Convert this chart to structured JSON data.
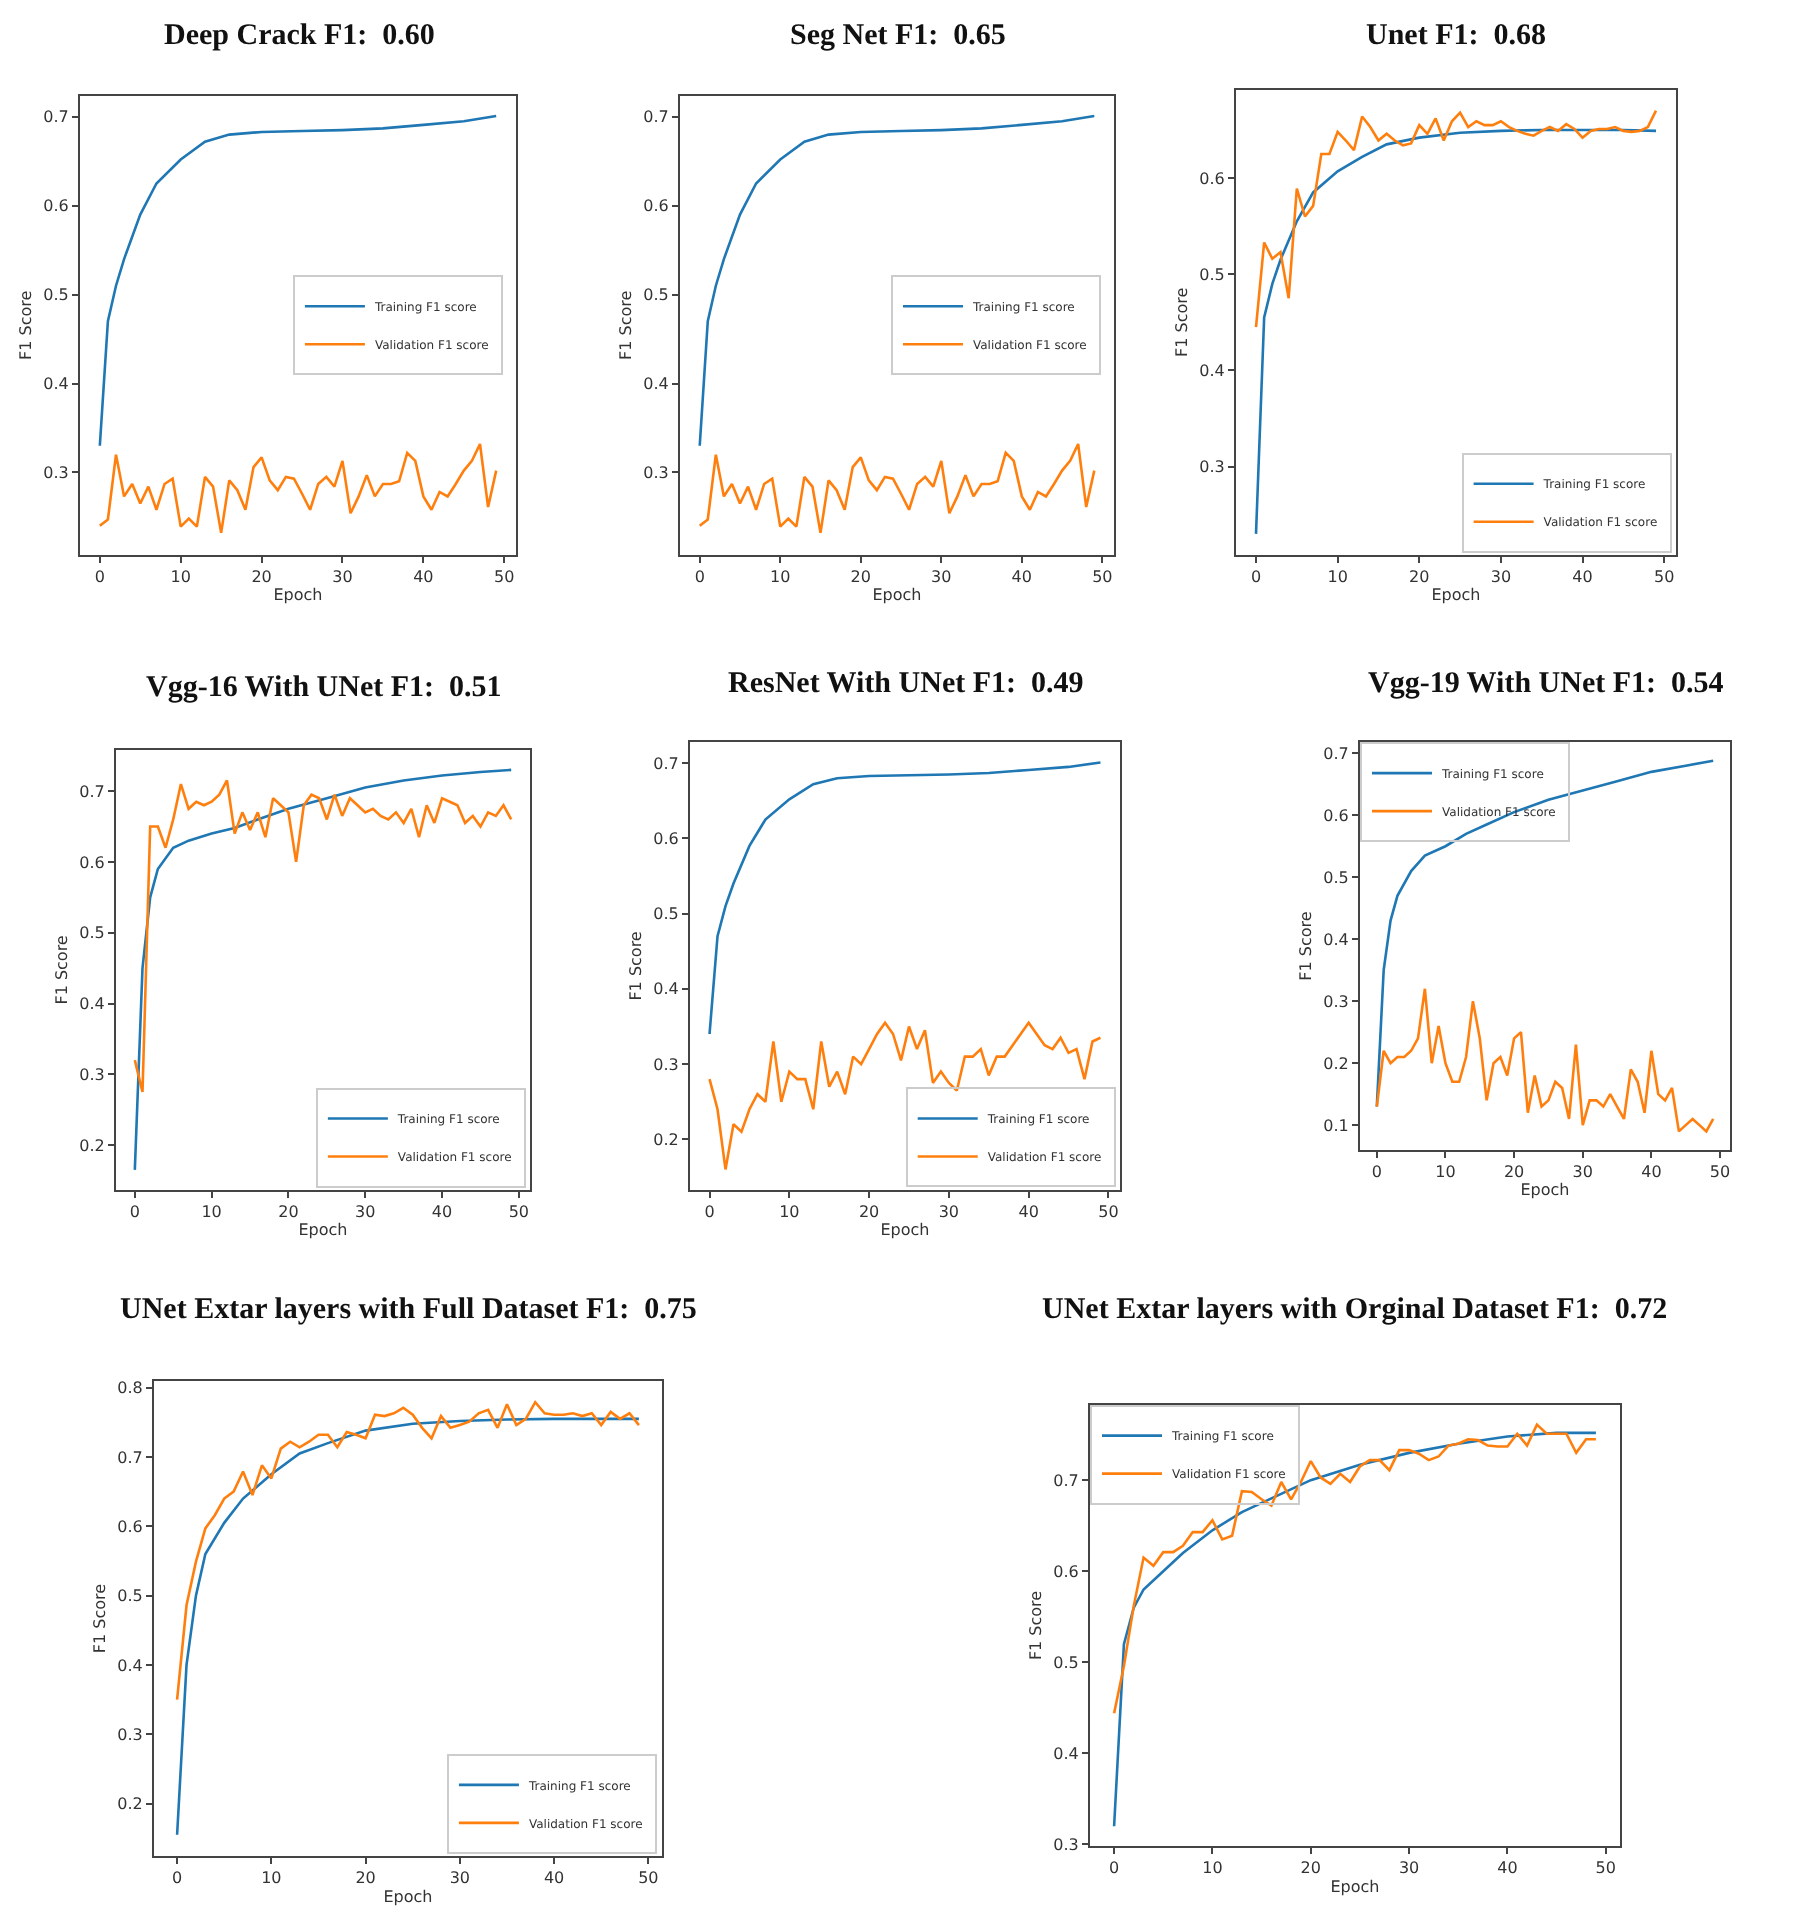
{
  "chart_data": [
    {
      "type": "line",
      "title": "Deep Crack F1:  0.60",
      "xlabel": "Epoch",
      "ylabel": "F1 Score",
      "xlim": [
        -2.45,
        51.45
      ],
      "ylim": [
        0.207,
        0.724
      ],
      "xticks": [
        0,
        10,
        20,
        30,
        40,
        50
      ],
      "yticks": [
        0.3,
        0.4,
        0.5,
        0.6,
        0.7
      ],
      "grid": false,
      "legend": "center right",
      "series": [
        {
          "name": "Training F1 score",
          "color": "#1f77b4",
          "x": [
            0,
            1,
            2,
            3,
            5,
            7,
            10,
            13,
            16,
            20,
            25,
            30,
            35,
            40,
            45,
            49
          ],
          "values": [
            0.33,
            0.47,
            0.51,
            0.54,
            0.59,
            0.625,
            0.652,
            0.672,
            0.68,
            0.683,
            0.684,
            0.685,
            0.687,
            0.691,
            0.695,
            0.701
          ]
        },
        {
          "name": "Validation F1 score",
          "color": "#ff7f0e",
          "x": [
            0,
            1,
            2,
            3,
            4,
            5,
            6,
            7,
            8,
            9,
            10,
            11,
            12,
            13,
            14,
            15,
            16,
            17,
            18,
            19,
            20,
            21,
            22,
            23,
            24,
            25,
            26,
            27,
            28,
            29,
            30,
            31,
            32,
            33,
            34,
            35,
            36,
            37,
            38,
            39,
            40,
            41,
            42,
            43,
            44,
            45,
            46,
            47,
            48,
            49
          ],
          "values": [
            0.24,
            0.247,
            0.32,
            0.273,
            0.287,
            0.265,
            0.284,
            0.258,
            0.287,
            0.293,
            0.239,
            0.248,
            0.239,
            0.295,
            0.284,
            0.232,
            0.291,
            0.28,
            0.258,
            0.306,
            0.317,
            0.291,
            0.28,
            0.295,
            0.293,
            0.276,
            0.258,
            0.287,
            0.295,
            0.284,
            0.313,
            0.254,
            0.273,
            0.297,
            0.273,
            0.287,
            0.287,
            0.29,
            0.322,
            0.313,
            0.273,
            0.258,
            0.278,
            0.273,
            0.287,
            0.302,
            0.313,
            0.332,
            0.261,
            0.302
          ]
        }
      ]
    },
    {
      "type": "line",
      "title": "Seg Net F1:  0.65",
      "xlabel": "Epoch",
      "ylabel": "F1 Score",
      "xlim": [
        -2.45,
        51.45
      ],
      "ylim": [
        0.207,
        0.724
      ],
      "xticks": [
        0,
        10,
        20,
        30,
        40,
        50
      ],
      "yticks": [
        0.3,
        0.4,
        0.5,
        0.6,
        0.7
      ],
      "grid": false,
      "legend": "center right",
      "series": [
        {
          "name": "Training F1 score",
          "color": "#1f77b4",
          "x": [
            0,
            1,
            2,
            3,
            5,
            7,
            10,
            13,
            16,
            20,
            25,
            30,
            35,
            40,
            45,
            49
          ],
          "values": [
            0.33,
            0.47,
            0.51,
            0.54,
            0.59,
            0.625,
            0.652,
            0.672,
            0.68,
            0.683,
            0.684,
            0.685,
            0.687,
            0.691,
            0.695,
            0.701
          ]
        },
        {
          "name": "Validation F1 score",
          "color": "#ff7f0e",
          "x": [
            0,
            1,
            2,
            3,
            4,
            5,
            6,
            7,
            8,
            9,
            10,
            11,
            12,
            13,
            14,
            15,
            16,
            17,
            18,
            19,
            20,
            21,
            22,
            23,
            24,
            25,
            26,
            27,
            28,
            29,
            30,
            31,
            32,
            33,
            34,
            35,
            36,
            37,
            38,
            39,
            40,
            41,
            42,
            43,
            44,
            45,
            46,
            47,
            48,
            49
          ],
          "values": [
            0.24,
            0.247,
            0.32,
            0.273,
            0.287,
            0.265,
            0.284,
            0.258,
            0.287,
            0.293,
            0.239,
            0.248,
            0.239,
            0.295,
            0.284,
            0.232,
            0.291,
            0.28,
            0.258,
            0.306,
            0.317,
            0.291,
            0.28,
            0.295,
            0.293,
            0.276,
            0.258,
            0.287,
            0.295,
            0.284,
            0.313,
            0.254,
            0.273,
            0.297,
            0.273,
            0.287,
            0.287,
            0.29,
            0.322,
            0.313,
            0.273,
            0.258,
            0.278,
            0.273,
            0.287,
            0.302,
            0.313,
            0.332,
            0.261,
            0.302
          ]
        }
      ]
    },
    {
      "type": "line",
      "title": "Unet F1:  0.68",
      "xlabel": "Epoch",
      "ylabel": "F1 Score",
      "xlim": [
        -2.45,
        51.45
      ],
      "ylim": [
        0.208,
        0.692
      ],
      "xticks": [
        0,
        10,
        20,
        30,
        40,
        50
      ],
      "yticks": [
        0.3,
        0.4,
        0.5,
        0.6
      ],
      "grid": false,
      "legend": "bottom right",
      "series": [
        {
          "name": "Training F1 score",
          "color": "#1f77b4",
          "x": [
            0,
            1,
            2,
            3,
            5,
            7,
            10,
            13,
            16,
            20,
            25,
            30,
            35,
            40,
            45,
            49
          ],
          "values": [
            0.23,
            0.455,
            0.49,
            0.515,
            0.555,
            0.585,
            0.607,
            0.622,
            0.635,
            0.642,
            0.647,
            0.649,
            0.65,
            0.65,
            0.65,
            0.649
          ]
        },
        {
          "name": "Validation F1 score",
          "color": "#ff7f0e",
          "x": [
            0,
            1,
            2,
            3,
            4,
            5,
            6,
            7,
            8,
            9,
            10,
            11,
            12,
            13,
            14,
            15,
            16,
            17,
            18,
            19,
            20,
            21,
            22,
            23,
            24,
            25,
            26,
            27,
            28,
            29,
            30,
            31,
            32,
            33,
            34,
            35,
            36,
            37,
            38,
            39,
            40,
            41,
            42,
            43,
            44,
            45,
            46,
            47,
            48,
            49
          ],
          "values": [
            0.445,
            0.533,
            0.516,
            0.523,
            0.475,
            0.589,
            0.56,
            0.571,
            0.625,
            0.625,
            0.648,
            0.639,
            0.629,
            0.664,
            0.653,
            0.639,
            0.646,
            0.639,
            0.634,
            0.636,
            0.655,
            0.646,
            0.662,
            0.639,
            0.659,
            0.668,
            0.653,
            0.659,
            0.655,
            0.655,
            0.659,
            0.653,
            0.649,
            0.646,
            0.644,
            0.649,
            0.653,
            0.649,
            0.656,
            0.651,
            0.642,
            0.649,
            0.651,
            0.651,
            0.653,
            0.649,
            0.648,
            0.649,
            0.653,
            0.67
          ]
        }
      ]
    },
    {
      "type": "line",
      "title": "Vgg-16 With UNet F1:  0.51",
      "xlabel": "Epoch",
      "ylabel": "F1 Score",
      "xlim": [
        -2.45,
        51.45
      ],
      "ylim": [
        0.137,
        0.758
      ],
      "xticks": [
        0,
        10,
        20,
        30,
        40,
        50
      ],
      "yticks": [
        0.2,
        0.3,
        0.4,
        0.5,
        0.6,
        0.7
      ],
      "grid": false,
      "legend": "bottom right",
      "series": [
        {
          "name": "Training F1 score",
          "color": "#1f77b4",
          "x": [
            0,
            1,
            2,
            3,
            5,
            7,
            10,
            13,
            16,
            20,
            25,
            30,
            35,
            40,
            45,
            49
          ],
          "values": [
            0.165,
            0.45,
            0.55,
            0.59,
            0.62,
            0.63,
            0.64,
            0.648,
            0.66,
            0.675,
            0.69,
            0.705,
            0.715,
            0.722,
            0.727,
            0.73
          ]
        },
        {
          "name": "Validation F1 score",
          "color": "#ff7f0e",
          "x": [
            0,
            1,
            2,
            3,
            4,
            5,
            6,
            7,
            8,
            9,
            10,
            11,
            12,
            13,
            14,
            15,
            16,
            17,
            18,
            19,
            20,
            21,
            22,
            23,
            24,
            25,
            26,
            27,
            28,
            29,
            30,
            31,
            32,
            33,
            34,
            35,
            36,
            37,
            38,
            39,
            40,
            41,
            42,
            43,
            44,
            45,
            46,
            47,
            48,
            49
          ],
          "values": [
            0.32,
            0.275,
            0.65,
            0.65,
            0.62,
            0.66,
            0.71,
            0.675,
            0.685,
            0.68,
            0.685,
            0.695,
            0.715,
            0.64,
            0.67,
            0.645,
            0.67,
            0.635,
            0.69,
            0.68,
            0.67,
            0.6,
            0.68,
            0.695,
            0.69,
            0.66,
            0.695,
            0.665,
            0.69,
            0.68,
            0.67,
            0.675,
            0.665,
            0.66,
            0.67,
            0.655,
            0.675,
            0.635,
            0.68,
            0.655,
            0.69,
            0.685,
            0.68,
            0.655,
            0.665,
            0.65,
            0.67,
            0.665,
            0.68,
            0.66
          ]
        }
      ]
    },
    {
      "type": "line",
      "title": "ResNet With UNet F1:  0.49",
      "xlabel": "Epoch",
      "ylabel": "F1 Score",
      "xlim": [
        -2.45,
        51.45
      ],
      "ylim": [
        0.133,
        0.728
      ],
      "xticks": [
        0,
        10,
        20,
        30,
        40,
        50
      ],
      "yticks": [
        0.2,
        0.3,
        0.4,
        0.5,
        0.6,
        0.7
      ],
      "grid": false,
      "legend": "bottom right",
      "series": [
        {
          "name": "Training F1 score",
          "color": "#1f77b4",
          "x": [
            0,
            1,
            2,
            3,
            5,
            7,
            10,
            13,
            16,
            20,
            25,
            30,
            35,
            40,
            45,
            49
          ],
          "values": [
            0.34,
            0.47,
            0.51,
            0.54,
            0.59,
            0.625,
            0.652,
            0.672,
            0.68,
            0.683,
            0.684,
            0.685,
            0.687,
            0.691,
            0.695,
            0.701
          ]
        },
        {
          "name": "Validation F1 score",
          "color": "#ff7f0e",
          "x": [
            0,
            1,
            2,
            3,
            4,
            5,
            6,
            7,
            8,
            9,
            10,
            11,
            12,
            13,
            14,
            15,
            16,
            17,
            18,
            19,
            20,
            21,
            22,
            23,
            24,
            25,
            26,
            27,
            28,
            29,
            30,
            31,
            32,
            33,
            34,
            35,
            36,
            37,
            38,
            39,
            40,
            41,
            42,
            43,
            44,
            45,
            46,
            47,
            48,
            49
          ],
          "values": [
            0.28,
            0.24,
            0.16,
            0.22,
            0.21,
            0.24,
            0.26,
            0.25,
            0.33,
            0.25,
            0.29,
            0.28,
            0.28,
            0.24,
            0.33,
            0.27,
            0.29,
            0.26,
            0.31,
            0.3,
            0.32,
            0.34,
            0.355,
            0.34,
            0.305,
            0.35,
            0.32,
            0.345,
            0.275,
            0.29,
            0.275,
            0.265,
            0.31,
            0.31,
            0.32,
            0.285,
            0.31,
            0.31,
            0.325,
            0.34,
            0.355,
            0.34,
            0.325,
            0.32,
            0.335,
            0.315,
            0.32,
            0.28,
            0.33,
            0.335
          ]
        }
      ]
    },
    {
      "type": "line",
      "title": "Vgg-19 With UNet F1:  0.54",
      "xlabel": "Epoch",
      "ylabel": "F1 Score",
      "xlim": [
        -2.45,
        51.45
      ],
      "ylim": [
        0.06,
        0.718
      ],
      "xticks": [
        0,
        10,
        20,
        30,
        40,
        50
      ],
      "yticks": [
        0.1,
        0.2,
        0.3,
        0.4,
        0.5,
        0.6,
        0.7
      ],
      "grid": false,
      "legend": "top left",
      "series": [
        {
          "name": "Training F1 score",
          "color": "#1f77b4",
          "x": [
            0,
            1,
            2,
            3,
            5,
            7,
            10,
            13,
            16,
            20,
            25,
            30,
            35,
            40,
            45,
            49
          ],
          "values": [
            0.13,
            0.35,
            0.43,
            0.47,
            0.51,
            0.535,
            0.55,
            0.57,
            0.585,
            0.605,
            0.625,
            0.64,
            0.655,
            0.67,
            0.68,
            0.688
          ]
        },
        {
          "name": "Validation F1 score",
          "color": "#ff7f0e",
          "x": [
            0,
            1,
            2,
            3,
            4,
            5,
            6,
            7,
            8,
            9,
            10,
            11,
            12,
            13,
            14,
            15,
            16,
            17,
            18,
            19,
            20,
            21,
            22,
            23,
            24,
            25,
            26,
            27,
            28,
            29,
            30,
            31,
            32,
            33,
            34,
            35,
            36,
            37,
            38,
            39,
            40,
            41,
            42,
            43,
            44,
            45,
            46,
            47,
            48,
            49
          ],
          "values": [
            0.13,
            0.22,
            0.2,
            0.21,
            0.21,
            0.22,
            0.24,
            0.32,
            0.2,
            0.26,
            0.2,
            0.17,
            0.17,
            0.21,
            0.3,
            0.24,
            0.14,
            0.2,
            0.21,
            0.18,
            0.24,
            0.25,
            0.12,
            0.18,
            0.13,
            0.14,
            0.17,
            0.16,
            0.11,
            0.23,
            0.1,
            0.14,
            0.14,
            0.13,
            0.15,
            0.13,
            0.11,
            0.19,
            0.17,
            0.12,
            0.22,
            0.15,
            0.14,
            0.16,
            0.09,
            0.1,
            0.11,
            0.1,
            0.09,
            0.11
          ]
        }
      ]
    },
    {
      "type": "line",
      "title": "UNet Extar layers with Full Dataset F1:  0.75",
      "xlabel": "Epoch",
      "ylabel": "F1 Score",
      "xlim": [
        -2.45,
        51.45
      ],
      "ylim": [
        0.124,
        0.81
      ],
      "xticks": [
        0,
        10,
        20,
        30,
        40,
        50
      ],
      "yticks": [
        0.2,
        0.3,
        0.4,
        0.5,
        0.6,
        0.7,
        0.8
      ],
      "grid": false,
      "legend": "bottom right",
      "series": [
        {
          "name": "Training F1 score",
          "color": "#1f77b4",
          "x": [
            0,
            1,
            2,
            3,
            5,
            7,
            10,
            13,
            16,
            20,
            25,
            30,
            35,
            40,
            45,
            49
          ],
          "values": [
            0.155,
            0.4,
            0.5,
            0.56,
            0.605,
            0.64,
            0.675,
            0.705,
            0.72,
            0.738,
            0.748,
            0.752,
            0.754,
            0.755,
            0.755,
            0.755
          ]
        },
        {
          "name": "Validation F1 score",
          "color": "#ff7f0e",
          "x": [
            0,
            1,
            2,
            3,
            4,
            5,
            6,
            7,
            8,
            9,
            10,
            11,
            12,
            13,
            14,
            15,
            16,
            17,
            18,
            19,
            20,
            21,
            22,
            23,
            24,
            25,
            26,
            27,
            28,
            29,
            30,
            31,
            32,
            33,
            34,
            35,
            36,
            37,
            38,
            39,
            40,
            41,
            42,
            43,
            44,
            45,
            46,
            47,
            48,
            49
          ],
          "values": [
            0.35,
            0.486,
            0.549,
            0.597,
            0.616,
            0.64,
            0.65,
            0.679,
            0.645,
            0.688,
            0.669,
            0.712,
            0.722,
            0.714,
            0.722,
            0.732,
            0.732,
            0.714,
            0.736,
            0.732,
            0.727,
            0.761,
            0.759,
            0.763,
            0.771,
            0.761,
            0.742,
            0.727,
            0.759,
            0.742,
            0.746,
            0.751,
            0.763,
            0.768,
            0.742,
            0.776,
            0.746,
            0.755,
            0.779,
            0.763,
            0.761,
            0.761,
            0.763,
            0.759,
            0.763,
            0.746,
            0.765,
            0.755,
            0.763,
            0.746
          ]
        }
      ]
    },
    {
      "type": "line",
      "title": "UNet Extar layers with Orginal Dataset F1:  0.72",
      "xlabel": "Epoch",
      "ylabel": "F1 Score",
      "xlim": [
        -2.45,
        51.45
      ],
      "ylim": [
        0.298,
        0.783
      ],
      "xticks": [
        0,
        10,
        20,
        30,
        40,
        50
      ],
      "yticks": [
        0.3,
        0.4,
        0.5,
        0.6,
        0.7
      ],
      "grid": false,
      "legend": "top left",
      "series": [
        {
          "name": "Training F1 score",
          "color": "#1f77b4",
          "x": [
            0,
            1,
            2,
            3,
            5,
            7,
            10,
            13,
            16,
            20,
            25,
            30,
            35,
            40,
            45,
            49
          ],
          "values": [
            0.32,
            0.52,
            0.56,
            0.58,
            0.6,
            0.62,
            0.645,
            0.665,
            0.68,
            0.7,
            0.717,
            0.73,
            0.74,
            0.748,
            0.752,
            0.752
          ]
        },
        {
          "name": "Validation F1 score",
          "color": "#ff7f0e",
          "x": [
            0,
            1,
            2,
            3,
            4,
            5,
            6,
            7,
            8,
            9,
            10,
            11,
            12,
            13,
            14,
            15,
            16,
            17,
            18,
            19,
            20,
            21,
            22,
            23,
            24,
            25,
            26,
            27,
            28,
            29,
            30,
            31,
            32,
            33,
            34,
            35,
            36,
            37,
            38,
            39,
            40,
            41,
            42,
            43,
            44,
            45,
            46,
            47,
            48,
            49
          ],
          "values": [
            0.444,
            0.496,
            0.562,
            0.615,
            0.606,
            0.621,
            0.621,
            0.628,
            0.643,
            0.643,
            0.656,
            0.635,
            0.639,
            0.688,
            0.687,
            0.679,
            0.672,
            0.698,
            0.679,
            0.698,
            0.721,
            0.703,
            0.696,
            0.707,
            0.698,
            0.715,
            0.722,
            0.722,
            0.711,
            0.733,
            0.733,
            0.729,
            0.722,
            0.726,
            0.738,
            0.74,
            0.745,
            0.744,
            0.738,
            0.737,
            0.737,
            0.751,
            0.738,
            0.761,
            0.751,
            0.751,
            0.751,
            0.73,
            0.745,
            0.745
          ]
        }
      ]
    }
  ]
}
